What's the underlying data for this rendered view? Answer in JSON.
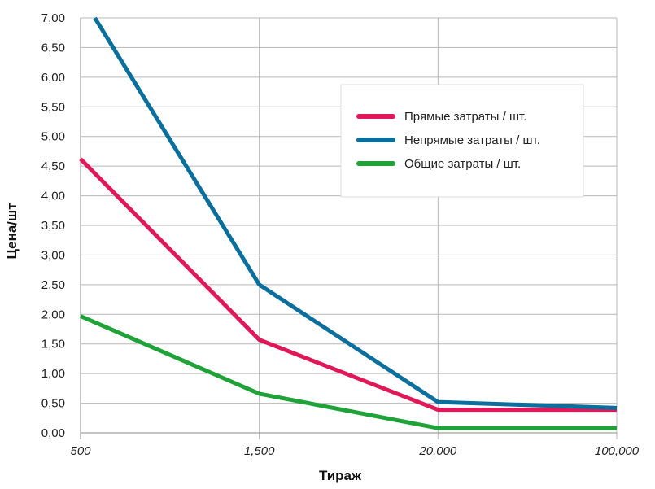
{
  "chart_data": {
    "type": "line",
    "xlabel": "Тираж",
    "ylabel": "Цена/шт",
    "categories": [
      "500",
      "1,500",
      "20,000",
      "100,000"
    ],
    "yticks": [
      "0,00",
      "0,50",
      "1,00",
      "1,50",
      "2,00",
      "2,50",
      "3,00",
      "3,50",
      "4,00",
      "4,50",
      "5,00",
      "5,50",
      "6,00",
      "6,50",
      "7,00"
    ],
    "ylim": [
      0,
      7
    ],
    "grid": true,
    "legend_position": "top-right",
    "series": [
      {
        "name": "Прямые затраты / шт.",
        "color": "#e0185a",
        "values": [
          4.62,
          1.57,
          0.39,
          0.39
        ]
      },
      {
        "name": "Непрямые затраты / шт.",
        "color": "#0a6f9c",
        "values": [
          7.0,
          2.5,
          0.52,
          0.42
        ],
        "x_offset_first": 0.08
      },
      {
        "name": "Общие затраты / шт.",
        "color": "#1fa339",
        "values": [
          1.97,
          0.66,
          0.08,
          0.08
        ]
      }
    ]
  }
}
